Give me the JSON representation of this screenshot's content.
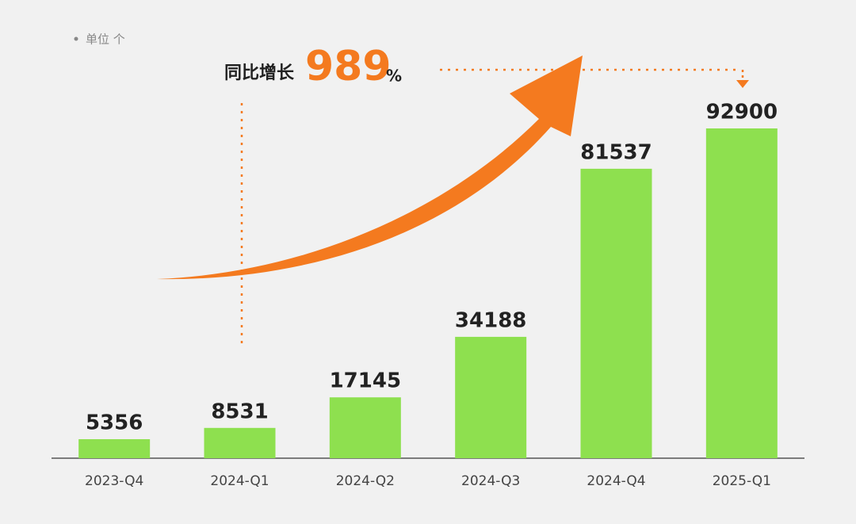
{
  "chart_data": {
    "type": "bar",
    "unit_note": "单位 个",
    "growth": {
      "label": "同比增长",
      "value": 989,
      "unit": "%"
    },
    "categories": [
      "2023-Q4",
      "2024-Q1",
      "2024-Q2",
      "2024-Q3",
      "2024-Q4",
      "2025-Q1"
    ],
    "values": [
      5356,
      8531,
      17145,
      34188,
      81537,
      92900
    ],
    "color": "#8ee04f",
    "arrow_color": "#f47a1f"
  }
}
